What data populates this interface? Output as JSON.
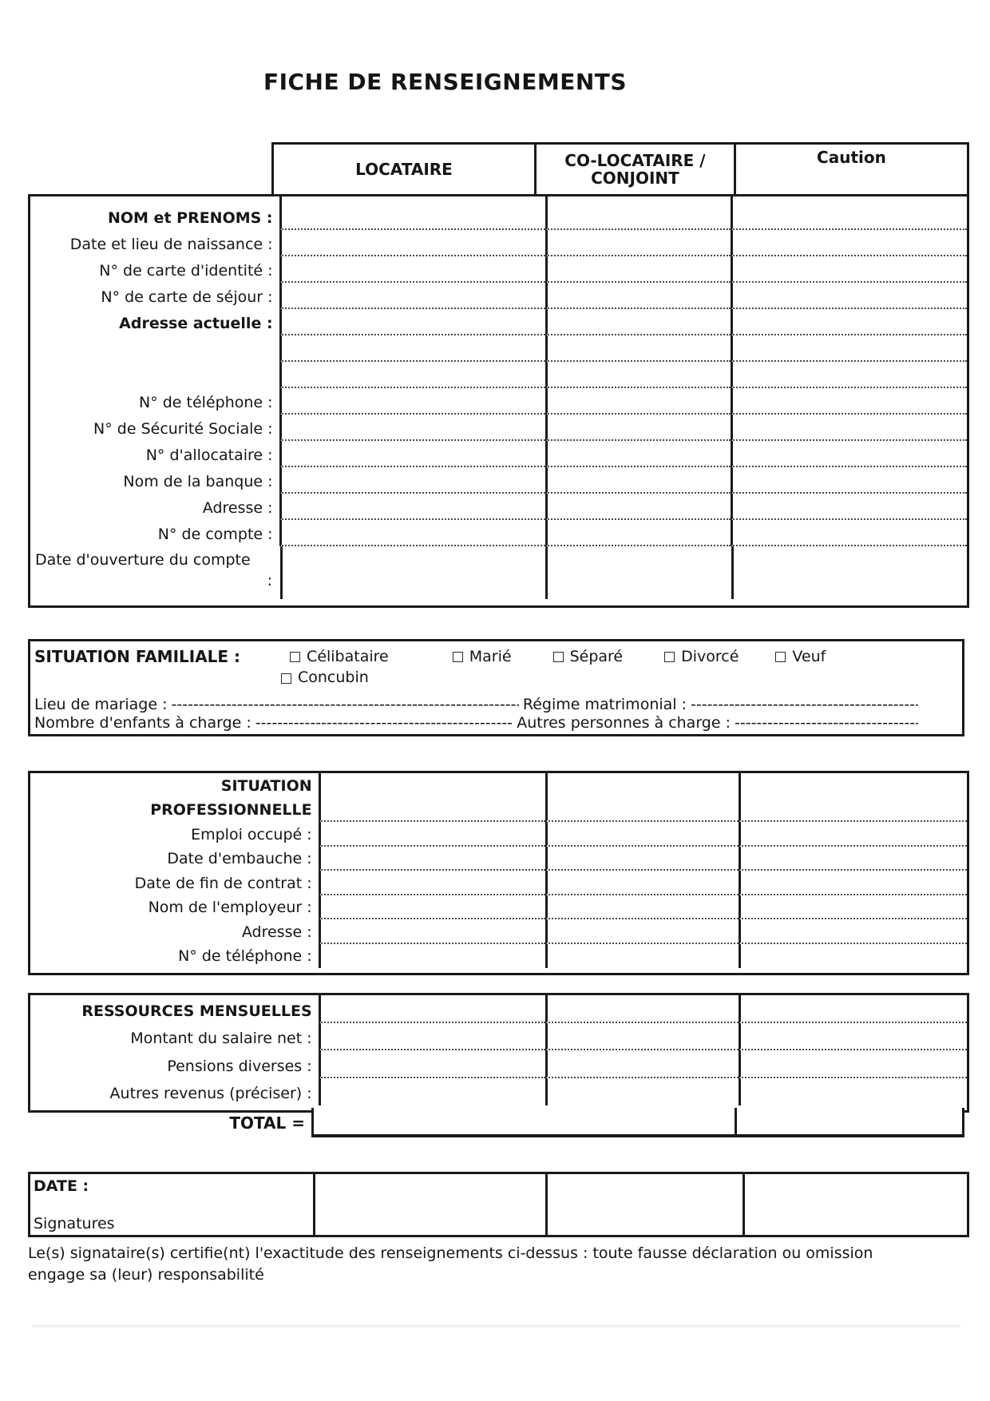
{
  "title": "FICHE DE RENSEIGNEMENTS",
  "columns": {
    "col1": "LOCATAIRE",
    "col2": "CO-LOCATAIRE / CONJOINT",
    "col3": "Caution"
  },
  "identity": {
    "rows": [
      {
        "label": "NOM et PRENOMS :",
        "bold": true
      },
      {
        "label": "Date et lieu de naissance :"
      },
      {
        "label": "N° de carte d'identité :"
      },
      {
        "label": "N° de carte de séjour :"
      },
      {
        "label": "Adresse actuelle :",
        "bold": true
      },
      {
        "label": ""
      },
      {
        "label": ""
      },
      {
        "label": "N° de téléphone :"
      },
      {
        "label": "N° de Sécurité Sociale :"
      },
      {
        "label": "N° d'allocataire :"
      },
      {
        "label": "Nom de la banque :"
      },
      {
        "label": "Adresse :"
      },
      {
        "label": "N° de compte :"
      },
      {
        "label": "Date d'ouverture du compte",
        "label2": ":",
        "tall": true
      }
    ]
  },
  "family": {
    "title": "SITUATION FAMILIALE :",
    "options": [
      "Célibataire",
      "Marié",
      "Séparé",
      "Divorcé",
      "Veuf"
    ],
    "option_row2": "Concubin",
    "marriage_label": "Lieu de mariage :",
    "marriage_dashes": "----------------------------------------------------------------------------------------------------",
    "regime_label": "Régime matrimonial :",
    "regime_dashes": "------------------------------------------------------------",
    "children_label": "Nombre d'enfants à charge :",
    "children_dashes": "----------------------------------------------------------------------------------------------------",
    "others_label": "Autres personnes à charge :",
    "others_dashes": "------------------------------------------------------------"
  },
  "professional": {
    "rows": [
      {
        "label": "SITUATION",
        "bold": true
      },
      {
        "label": "PROFESSIONNELLE",
        "bold": true
      },
      {
        "label": "Emploi occupé :"
      },
      {
        "label": "Date d'embauche :"
      },
      {
        "label": "Date de fin de contrat :"
      },
      {
        "label": "Nom de l'employeur :"
      },
      {
        "label": "Adresse :"
      },
      {
        "label": "N° de téléphone :"
      }
    ]
  },
  "resources": {
    "rows": [
      {
        "label": "RESSOURCES MENSUELLES",
        "bold": true
      },
      {
        "label": "Montant du salaire net :"
      },
      {
        "label": "Pensions diverses :"
      },
      {
        "label": "Autres revenus (préciser) :"
      }
    ],
    "total_label": "TOTAL ="
  },
  "date_section": {
    "date_label": "DATE :",
    "signatures_label": "Signatures"
  },
  "footer": {
    "line1": "Le(s) signataire(s) certifie(nt) l'exactitude des renseignements ci-dessus : toute fausse déclaration ou omission",
    "line2": "engage sa (leur) responsabilité"
  }
}
